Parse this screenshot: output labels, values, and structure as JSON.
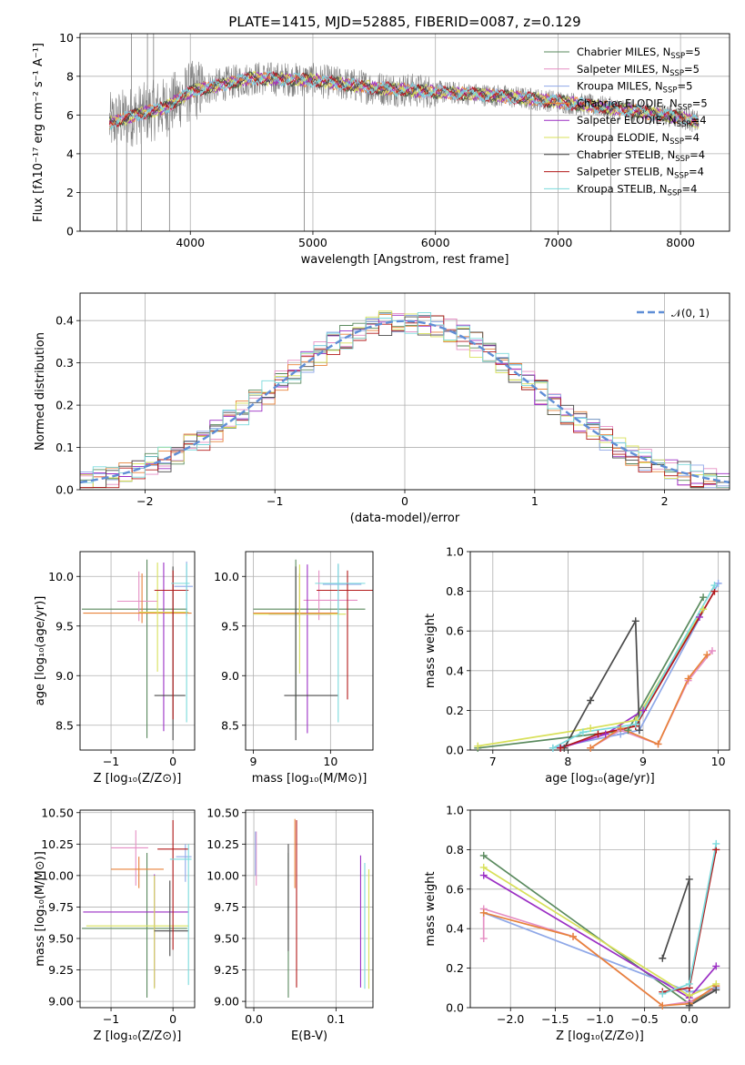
{
  "figure": {
    "title": "PLATE=1415, MJD=52885, FIBERID=0087, z=0.129"
  },
  "colors": {
    "model_palette": [
      "#5a8a5e",
      "#e58fc4",
      "#8fa8e8",
      "#e8823a",
      "#9b2fc4",
      "#d8e05a",
      "#4a4a4a",
      "#b31a1a",
      "#7adadc"
    ],
    "data_color": "#808080",
    "gaussian_color": "#5f8ed6",
    "grid_color": "#b0b0b0"
  },
  "legend": {
    "models": [
      {
        "name": "Chabrier MILES",
        "nssp": "5"
      },
      {
        "name": "Salpeter MILES",
        "nssp": "5"
      },
      {
        "name": "Kroupa MILES",
        "nssp": "5"
      },
      {
        "name": "Chabrier ELODIE",
        "nssp": "5"
      },
      {
        "name": "Salpeter ELODIE",
        "nssp": "4"
      },
      {
        "name": "Kroupa ELODIE",
        "nssp": "4"
      },
      {
        "name": "Chabrier STELIB",
        "nssp": "4"
      },
      {
        "name": "Salpeter STELIB",
        "nssp": "4"
      },
      {
        "name": "Kroupa STELIB",
        "nssp": "4"
      }
    ],
    "nssp_prefix": "N",
    "nssp_sub": "SSP",
    "gaussian_label": "𝒩(0, 1)"
  },
  "chart_data": [
    {
      "id": "spectrum",
      "type": "line",
      "xlabel": "wavelength [Angstrom, rest frame]",
      "ylabel": "Flux [fλ10⁻¹⁷ erg cm⁻² s⁻¹ A⁻¹]",
      "xlim": [
        3100,
        8400
      ],
      "ylim": [
        0,
        10.2
      ],
      "xticks": [
        4000,
        5000,
        6000,
        7000,
        8000
      ],
      "yticks": [
        0,
        2,
        4,
        6,
        8,
        10
      ],
      "continuum": [
        [
          3350,
          5.6
        ],
        [
          3500,
          5.9
        ],
        [
          3800,
          6.4
        ],
        [
          4000,
          7.2
        ],
        [
          4200,
          7.5
        ],
        [
          4500,
          7.9
        ],
        [
          5000,
          7.8
        ],
        [
          5500,
          7.4
        ],
        [
          6000,
          7.2
        ],
        [
          6500,
          7.0
        ],
        [
          7000,
          6.7
        ],
        [
          7500,
          6.3
        ],
        [
          8000,
          5.9
        ],
        [
          8150,
          5.6
        ]
      ],
      "data_wavelength_range": [
        3340,
        8150
      ],
      "data_spikes": [
        [
          3400,
          0
        ],
        [
          3480,
          0
        ],
        [
          3600,
          0
        ],
        [
          3830,
          0
        ],
        [
          4930,
          0
        ],
        [
          6780,
          0
        ],
        [
          7430,
          0
        ],
        [
          3520,
          10.2
        ],
        [
          3650,
          10.2
        ],
        [
          3700,
          10.2
        ]
      ]
    },
    {
      "id": "residual_histogram",
      "type": "bar",
      "xlabel": "(data-model)/error",
      "ylabel": "Normed distribution",
      "xlim": [
        -2.5,
        2.5
      ],
      "ylim": [
        0,
        0.465
      ],
      "xticks": [
        -2,
        -1,
        0,
        1,
        2
      ],
      "yticks": [
        0,
        0.1,
        0.2,
        0.3,
        0.4
      ],
      "bin_width": 0.1,
      "histogram_envelope": "normal(0,1)",
      "gaussian": {
        "mu": 0,
        "sigma": 1
      }
    },
    {
      "id": "age_vs_Z",
      "type": "scatter",
      "xlabel": "Z [log₁₀(Z/Z⊙)]",
      "ylabel": "age  [log₁₀(age/yr)]",
      "xlim": [
        -1.5,
        0.35
      ],
      "ylim": [
        8.25,
        10.25
      ],
      "xticks": [
        -1,
        0
      ],
      "yticks": [
        8.5,
        9.0,
        9.5,
        10.0
      ],
      "points": [
        {
          "x": -0.42,
          "y": 9.67,
          "xerr": [
            1.05,
            0.65
          ],
          "yerr": [
            1.3,
            0.5
          ]
        },
        {
          "x": -0.55,
          "y": 9.75,
          "xerr": [
            0.35,
            0.3
          ],
          "yerr": [
            0.2,
            0.3
          ]
        },
        {
          "x": 0.22,
          "y": 9.9,
          "xerr": [
            0.2,
            0.1
          ],
          "yerr": [
            0.3,
            0.25
          ]
        },
        {
          "x": -0.5,
          "y": 9.63,
          "xerr": [
            0.95,
            0.8
          ],
          "yerr": [
            0.1,
            0.4
          ]
        },
        {
          "x": -0.15,
          "y": 9.64,
          "xerr": [
            0.2,
            0.2
          ],
          "yerr": [
            1.2,
            0.5
          ]
        },
        {
          "x": -0.25,
          "y": 9.64,
          "xerr": [
            0.3,
            0.5
          ],
          "yerr": [
            0.6,
            0.5
          ]
        },
        {
          "x": 0.0,
          "y": 8.8,
          "xerr": [
            0.3,
            0.2
          ],
          "yerr": [
            0.45,
            1.3
          ]
        },
        {
          "x": 0.0,
          "y": 9.86,
          "xerr": [
            0.3,
            0.25
          ],
          "yerr": [
            1.3,
            0.2
          ]
        },
        {
          "x": 0.22,
          "y": 9.93,
          "xerr": [
            0.25,
            0.05
          ],
          "yerr": [
            1.4,
            0.2
          ]
        }
      ]
    },
    {
      "id": "age_vs_mass",
      "type": "scatter",
      "xlabel": "mass [log₁₀(M/M⊙)]",
      "ylabel": "",
      "xlim": [
        8.9,
        10.55
      ],
      "ylim": [
        8.25,
        10.25
      ],
      "xticks": [
        9,
        10
      ],
      "yticks": [
        8.5,
        9.0,
        9.5,
        10.0
      ],
      "points": [
        {
          "x": 9.55,
          "y": 9.67,
          "xerr": [
            0.55,
            0.9
          ],
          "yerr": [
            1.12,
            0.5
          ]
        },
        {
          "x": 9.85,
          "y": 9.76,
          "xerr": [
            0.2,
            0.5
          ],
          "yerr": [
            0.2,
            0.3
          ]
        },
        {
          "x": 10.1,
          "y": 9.92,
          "xerr": [
            0.2,
            0.3
          ],
          "yerr": [
            0.3,
            0.2
          ]
        },
        {
          "x": 9.6,
          "y": 9.63,
          "xerr": [
            0.6,
            0.5
          ],
          "yerr": [
            0.1,
            0.4
          ]
        },
        {
          "x": 9.7,
          "y": 9.62,
          "xerr": [
            0.5,
            0.3
          ],
          "yerr": [
            1.2,
            0.5
          ]
        },
        {
          "x": 9.6,
          "y": 9.62,
          "xerr": [
            0.6,
            0.6
          ],
          "yerr": [
            0.6,
            0.5
          ]
        },
        {
          "x": 9.55,
          "y": 8.8,
          "xerr": [
            0.15,
            0.55
          ],
          "yerr": [
            0.45,
            1.3
          ]
        },
        {
          "x": 10.22,
          "y": 9.86,
          "xerr": [
            0.4,
            0.55
          ],
          "yerr": [
            1.1,
            0.2
          ]
        },
        {
          "x": 10.1,
          "y": 9.93,
          "xerr": [
            0.3,
            0.35
          ],
          "yerr": [
            1.4,
            0.2
          ]
        }
      ]
    },
    {
      "id": "mass_weight_vs_age",
      "type": "line",
      "xlabel": "age  [log₁₀(age/yr)]",
      "ylabel": "mass weight",
      "xlim": [
        6.7,
        10.15
      ],
      "ylim": [
        0,
        1.0
      ],
      "xticks": [
        7,
        8,
        9,
        10
      ],
      "yticks": [
        0.0,
        0.2,
        0.4,
        0.6,
        0.8,
        1.0
      ],
      "series": [
        {
          "x": [
            6.8,
            8.8,
            9.8
          ],
          "y": [
            0.01,
            0.1,
            0.77
          ]
        },
        {
          "x": [
            8.3,
            8.7,
            9.2,
            9.6,
            9.92
          ],
          "y": [
            0.01,
            0.1,
            0.03,
            0.35,
            0.5
          ]
        },
        {
          "x": [
            7.8,
            8.7,
            8.95,
            10.0
          ],
          "y": [
            0.01,
            0.08,
            0.1,
            0.84
          ]
        },
        {
          "x": [
            8.3,
            8.7,
            9.2,
            9.6,
            9.85
          ],
          "y": [
            0.01,
            0.11,
            0.03,
            0.36,
            0.48
          ]
        },
        {
          "x": [
            7.9,
            8.5,
            9.0,
            9.75
          ],
          "y": [
            0.01,
            0.08,
            0.2,
            0.67
          ]
        },
        {
          "x": [
            6.8,
            8.3,
            8.9,
            9.8
          ],
          "y": [
            0.02,
            0.11,
            0.15,
            0.71
          ]
        },
        {
          "x": [
            7.95,
            8.3,
            8.9,
            8.95
          ],
          "y": [
            0.01,
            0.25,
            0.65,
            0.1
          ]
        },
        {
          "x": [
            7.9,
            8.4,
            8.9,
            9.95
          ],
          "y": [
            0.01,
            0.08,
            0.12,
            0.8
          ]
        },
        {
          "x": [
            7.8,
            8.2,
            8.9,
            9.95
          ],
          "y": [
            0.01,
            0.09,
            0.13,
            0.83
          ]
        }
      ]
    },
    {
      "id": "mass_vs_Z",
      "type": "scatter",
      "xlabel": "Z [log₁₀(Z/Z⊙)]",
      "ylabel": "mass [log₁₀(M/M⊙)]",
      "xlim": [
        -1.5,
        0.35
      ],
      "ylim": [
        8.95,
        10.52
      ],
      "xticks": [
        -1,
        0
      ],
      "yticks": [
        9.0,
        9.25,
        9.5,
        9.75,
        10.0,
        10.25,
        10.5
      ],
      "points": [
        {
          "x": -0.42,
          "y": 9.58,
          "xerr": [
            1.05,
            0.65
          ],
          "yerr": [
            0.55,
            0.6
          ]
        },
        {
          "x": -0.6,
          "y": 10.22,
          "xerr": [
            0.4,
            0.2
          ],
          "yerr": [
            0.3,
            0.14
          ]
        },
        {
          "x": 0.2,
          "y": 10.15,
          "xerr": [
            0.15,
            0.1
          ],
          "yerr": [
            0.2,
            0.1
          ]
        },
        {
          "x": -0.55,
          "y": 10.05,
          "xerr": [
            0.45,
            0.4
          ],
          "yerr": [
            0.15,
            0.1
          ]
        },
        {
          "x": -0.3,
          "y": 9.71,
          "xerr": [
            1.15,
            0.55
          ],
          "yerr": [
            0.6,
            0.3
          ]
        },
        {
          "x": -0.3,
          "y": 9.6,
          "xerr": [
            1.1,
            0.55
          ],
          "yerr": [
            0.5,
            0.4
          ]
        },
        {
          "x": -0.05,
          "y": 9.56,
          "xerr": [
            0.25,
            0.3
          ],
          "yerr": [
            0.2,
            0.4
          ]
        },
        {
          "x": 0.0,
          "y": 10.21,
          "xerr": [
            0.25,
            0.25
          ],
          "yerr": [
            0.8,
            0.23
          ]
        },
        {
          "x": 0.25,
          "y": 10.13,
          "xerr": [
            0.3,
            0.05
          ],
          "yerr": [
            1.0,
            0.12
          ]
        }
      ]
    },
    {
      "id": "mass_vs_EBV",
      "type": "scatter",
      "xlabel": "E(B-V)",
      "ylabel": "",
      "xlim": [
        -0.01,
        0.145
      ],
      "ylim": [
        8.95,
        10.52
      ],
      "xticks": [
        0.0,
        0.1
      ],
      "yticks": [
        9.0,
        9.25,
        9.5,
        9.75,
        10.0,
        10.25,
        10.5
      ],
      "points": [
        {
          "x": 0.042,
          "y": 9.58,
          "yerr": [
            0.55,
            0.6
          ]
        },
        {
          "x": 0.003,
          "y": 10.22,
          "yerr": [
            0.3,
            0.13
          ]
        },
        {
          "x": 0.002,
          "y": 10.15,
          "yerr": [
            0.15,
            0.2
          ]
        },
        {
          "x": 0.05,
          "y": 10.05,
          "yerr": [
            0.15,
            0.4
          ]
        },
        {
          "x": 0.13,
          "y": 9.71,
          "yerr": [
            0.6,
            0.45
          ]
        },
        {
          "x": 0.14,
          "y": 9.6,
          "yerr": [
            0.5,
            0.45
          ]
        },
        {
          "x": 0.042,
          "y": 9.8,
          "yerr": [
            0.4,
            0.45
          ]
        },
        {
          "x": 0.052,
          "y": 10.21,
          "yerr": [
            1.1,
            0.23
          ]
        },
        {
          "x": 0.135,
          "y": 9.5,
          "yerr": [
            0.4,
            0.6
          ]
        }
      ]
    },
    {
      "id": "mass_weight_vs_Z",
      "type": "line",
      "xlabel": "Z [log₁₀(Z/Z⊙)]",
      "ylabel": "mass weight",
      "xlim": [
        -2.45,
        0.45
      ],
      "ylim": [
        0,
        1.0
      ],
      "xticks": [
        -2.0,
        -1.5,
        -1.0,
        -0.5,
        0.0
      ],
      "yticks": [
        0.0,
        0.2,
        0.4,
        0.6,
        0.8,
        1.0
      ],
      "series": [
        {
          "x": [
            -2.3,
            0.0,
            0.3
          ],
          "y": [
            0.77,
            0.02,
            0.1
          ]
        },
        {
          "x": [
            -2.3,
            -2.3,
            -1.3,
            -0.3,
            0.0,
            0.3
          ],
          "y": [
            0.35,
            0.5,
            0.36,
            0.01,
            0.03,
            0.1
          ]
        },
        {
          "x": [
            -2.3,
            0.0,
            0.3
          ],
          "y": [
            0.48,
            0.08,
            0.1
          ]
        },
        {
          "x": [
            -2.3,
            -1.3,
            -0.3,
            0.0,
            0.3
          ],
          "y": [
            0.48,
            0.36,
            0.01,
            0.02,
            0.11
          ]
        },
        {
          "x": [
            -2.3,
            0.0,
            0.3
          ],
          "y": [
            0.67,
            0.05,
            0.21
          ]
        },
        {
          "x": [
            -2.3,
            0.0,
            0.3
          ],
          "y": [
            0.71,
            0.06,
            0.12
          ]
        },
        {
          "x": [
            -0.3,
            0.0,
            0.0,
            0.3
          ],
          "y": [
            0.25,
            0.65,
            0.01,
            0.09
          ]
        },
        {
          "x": [
            -0.3,
            0.0,
            0.3
          ],
          "y": [
            0.08,
            0.1,
            0.8
          ]
        },
        {
          "x": [
            -0.3,
            0.0,
            0.3
          ],
          "y": [
            0.07,
            0.12,
            0.83
          ]
        }
      ]
    }
  ]
}
